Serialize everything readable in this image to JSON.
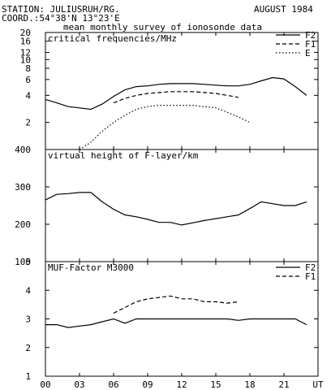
{
  "header": {
    "station": "STATION: JULIUSRUH/RG.",
    "date": "AUGUST 1984",
    "coord": "COORD.:54°38'N 13°23'E",
    "subtitle": "mean monthly survey of ionosonde data"
  },
  "chart_data": [
    {
      "type": "line",
      "title": "critical frequencies/MHz",
      "yscale": "log",
      "ylim": [
        1,
        20
      ],
      "yticks": [
        2,
        4,
        6,
        8,
        10,
        12,
        16,
        20
      ],
      "xlim": [
        0,
        24
      ],
      "legend_position": "top-right",
      "series": [
        {
          "name": "F2",
          "dash": "solid",
          "x": [
            0,
            1,
            2,
            3,
            4,
            5,
            6,
            7,
            8,
            9,
            10,
            11,
            12,
            13,
            14,
            15,
            16,
            17,
            18,
            19,
            20,
            21,
            22,
            23
          ],
          "values": [
            3.6,
            3.3,
            3.0,
            2.9,
            2.8,
            3.2,
            3.9,
            4.6,
            5.0,
            5.1,
            5.3,
            5.4,
            5.4,
            5.4,
            5.3,
            5.2,
            5.1,
            5.1,
            5.3,
            5.8,
            6.3,
            6.1,
            5.0,
            4.0
          ]
        },
        {
          "name": "F1",
          "dash": "dashed",
          "x": [
            6,
            7,
            8,
            9,
            10,
            11,
            12,
            13,
            14,
            15,
            16,
            17
          ],
          "values": [
            3.3,
            3.7,
            4.0,
            4.2,
            4.3,
            4.4,
            4.4,
            4.4,
            4.3,
            4.2,
            4.0,
            3.8
          ]
        },
        {
          "name": "E",
          "dash": "dotted",
          "x": [
            3,
            4,
            5,
            6,
            7,
            8,
            9,
            10,
            11,
            12,
            13,
            14,
            15,
            16,
            17,
            18
          ],
          "values": [
            1.0,
            1.2,
            1.6,
            2.0,
            2.4,
            2.8,
            3.0,
            3.1,
            3.1,
            3.1,
            3.1,
            3.0,
            2.9,
            2.6,
            2.3,
            2.0
          ]
        }
      ]
    },
    {
      "type": "line",
      "title": "virtual height of F-layer/km",
      "ylim": [
        100,
        400
      ],
      "yticks": [
        100,
        200,
        300,
        400
      ],
      "xlim": [
        0,
        24
      ],
      "series": [
        {
          "dash": "solid",
          "x": [
            0,
            1,
            2,
            3,
            4,
            5,
            6,
            7,
            8,
            9,
            10,
            11,
            12,
            13,
            14,
            15,
            16,
            17,
            18,
            19,
            20,
            21,
            22,
            23
          ],
          "values": [
            265,
            280,
            282,
            285,
            285,
            260,
            240,
            225,
            220,
            213,
            205,
            205,
            198,
            204,
            210,
            215,
            220,
            225,
            242,
            260,
            255,
            250,
            250,
            260
          ]
        }
      ]
    },
    {
      "type": "line",
      "title": "MUF-Factor M3000",
      "ylim": [
        1,
        5
      ],
      "yticks": [
        1,
        2,
        3,
        4,
        5
      ],
      "xlim": [
        0,
        24
      ],
      "xticks": [
        0,
        3,
        6,
        9,
        12,
        15,
        18,
        21,
        24
      ],
      "xticklabels": [
        "00",
        "03",
        "06",
        "09",
        "12",
        "15",
        "18",
        "21",
        "UT"
      ],
      "legend_position": "top-right",
      "series": [
        {
          "name": "F2",
          "dash": "solid",
          "x": [
            0,
            1,
            2,
            3,
            4,
            5,
            6,
            7,
            8,
            9,
            10,
            11,
            12,
            13,
            14,
            15,
            16,
            17,
            18,
            19,
            20,
            21,
            22,
            23
          ],
          "values": [
            2.8,
            2.8,
            2.7,
            2.75,
            2.8,
            2.9,
            3.0,
            2.85,
            3.0,
            3.0,
            3.0,
            3.0,
            3.0,
            3.0,
            3.0,
            3.0,
            3.0,
            2.95,
            3.0,
            3.0,
            3.0,
            3.0,
            3.0,
            2.8
          ]
        },
        {
          "name": "F1",
          "dash": "dashed",
          "x": [
            6,
            7,
            8,
            9,
            10,
            11,
            12,
            13,
            14,
            15,
            16,
            17
          ],
          "values": [
            3.2,
            3.4,
            3.6,
            3.7,
            3.75,
            3.8,
            3.7,
            3.7,
            3.6,
            3.6,
            3.55,
            3.6
          ]
        }
      ]
    }
  ]
}
